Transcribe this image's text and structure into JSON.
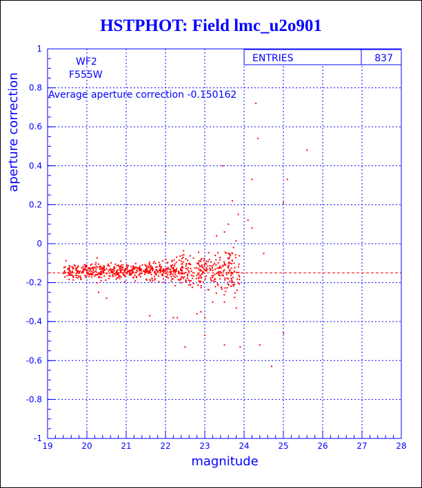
{
  "title": "HSTPHOT: Field lmc_u2o901",
  "stats_box": {
    "label": "ENTRIES",
    "value": "837"
  },
  "annotations": {
    "chip": "WF2",
    "filter": "F555W",
    "average_text": "Average aperture correction -0.150162"
  },
  "colors": {
    "axis": "#0000ff",
    "points": "#ff0000",
    "grid": "#0000ff",
    "title": "#0000ff"
  },
  "chart_data": {
    "type": "scatter",
    "title": "HSTPHOT: Field lmc_u2o901",
    "xlabel": "magnitude",
    "ylabel": "aperture correction",
    "xlim": [
      19,
      28
    ],
    "ylim": [
      -1,
      1
    ],
    "x_ticks": [
      19,
      20,
      21,
      22,
      23,
      24,
      25,
      26,
      27,
      28
    ],
    "y_ticks": [
      -1,
      -0.8,
      -0.6,
      -0.4,
      -0.2,
      0,
      0.2,
      0.4,
      0.6,
      0.8,
      1
    ],
    "x_tick_labels": [
      "19",
      "20",
      "21",
      "22",
      "23",
      "24",
      "25",
      "26",
      "27",
      "28"
    ],
    "y_tick_labels": [
      "-1",
      "-0.8",
      "-0.6",
      "-0.4",
      "-0.2",
      "0",
      "0.2",
      "0.4",
      "0.6",
      "0.8",
      "1"
    ],
    "grid": true,
    "average_line": -0.150162,
    "entries": 837,
    "points": [
      {
        "x": 24.3,
        "y": 0.72
      },
      {
        "x": 24.35,
        "y": 0.54
      },
      {
        "x": 25.6,
        "y": 0.48
      },
      {
        "x": 23.45,
        "y": 0.4
      },
      {
        "x": 24.2,
        "y": 0.33
      },
      {
        "x": 25.1,
        "y": 0.33
      },
      {
        "x": 25.0,
        "y": 0.21
      },
      {
        "x": 23.7,
        "y": 0.22
      },
      {
        "x": 23.85,
        "y": 0.15
      },
      {
        "x": 24.1,
        "y": 0.12
      },
      {
        "x": 24.2,
        "y": 0.08
      },
      {
        "x": 23.6,
        "y": 0.1
      },
      {
        "x": 23.5,
        "y": 0.06
      },
      {
        "x": 22.0,
        "y": 0.06
      },
      {
        "x": 23.3,
        "y": 0.04
      },
      {
        "x": 24.5,
        "y": -0.05
      },
      {
        "x": 24.4,
        "y": -0.52
      },
      {
        "x": 25.0,
        "y": -0.46
      },
      {
        "x": 24.7,
        "y": -0.63
      },
      {
        "x": 23.9,
        "y": -0.53
      },
      {
        "x": 22.5,
        "y": -0.53
      },
      {
        "x": 23.5,
        "y": -0.52
      },
      {
        "x": 23.0,
        "y": -0.47
      },
      {
        "x": 22.8,
        "y": -0.36
      },
      {
        "x": 21.6,
        "y": -0.37
      },
      {
        "x": 22.2,
        "y": -0.38
      },
      {
        "x": 22.3,
        "y": -0.38
      },
      {
        "x": 23.0,
        "y": -0.38
      },
      {
        "x": 22.9,
        "y": -0.35
      },
      {
        "x": 23.8,
        "y": -0.33
      },
      {
        "x": 23.5,
        "y": -0.3
      },
      {
        "x": 23.2,
        "y": -0.3
      },
      {
        "x": 20.5,
        "y": -0.28
      },
      {
        "x": 20.3,
        "y": -0.25
      }
    ],
    "cluster": {
      "x_range": [
        19.4,
        23.9
      ],
      "center_y": -0.14,
      "spread_y": 0.05
    }
  }
}
